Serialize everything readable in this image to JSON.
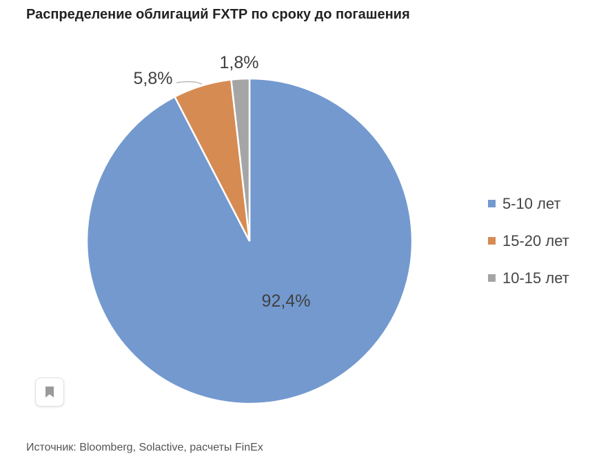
{
  "title": "Распределение облигаций FXTP по сроку до погашения",
  "source": "Источник: Bloomberg, Solactive, расчеты FinEx",
  "chart_data": {
    "type": "pie",
    "title": "",
    "slices": [
      {
        "name": "5-10 лет",
        "value": 92.4,
        "label": "92,4%",
        "color": "#7399CF"
      },
      {
        "name": "15-20 лет",
        "value": 5.8,
        "label": "5,8%",
        "color": "#D68B53"
      },
      {
        "name": "10-15 лет",
        "value": 1.8,
        "label": "1,8%",
        "color": "#A5A5A5"
      }
    ],
    "legend_position": "right"
  },
  "icons": {
    "bookmark": "bookmark-icon"
  }
}
